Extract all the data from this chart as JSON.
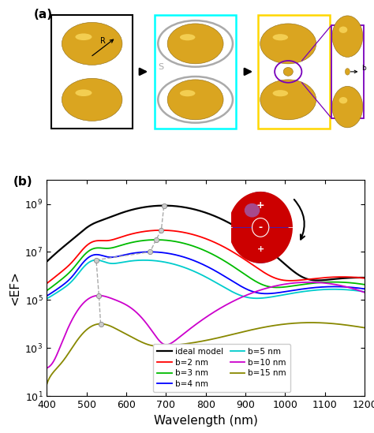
{
  "title_a": "(a)",
  "title_b": "(b)",
  "xlabel": "Wavelength (nm)",
  "ylabel": "<EF>",
  "xlim": [
    400,
    1200
  ],
  "ylim_min": 10,
  "ylim_max": 10000000000.0,
  "colors": {
    "ideal": "#000000",
    "b2": "#ff0000",
    "b3": "#00bb00",
    "b4": "#0000ff",
    "b5": "#00cccc",
    "b10": "#cc00cc",
    "b15": "#888800"
  },
  "legend_labels": {
    "ideal": "ideal model",
    "b2": "b=2 nm",
    "b3": "b=3 nm",
    "b4": "b=4 nm",
    "b5": "b=5 nm",
    "b10": "b=10 nm",
    "b15": "b=15 nm"
  },
  "dashed_marker_color": "#aaaaaa",
  "figure_bg": "#ffffff",
  "inset_sphere_top_color": "#cc0000",
  "inset_sphere_bottom_color": "#2222dd",
  "inset_arrow_color": "#111111"
}
